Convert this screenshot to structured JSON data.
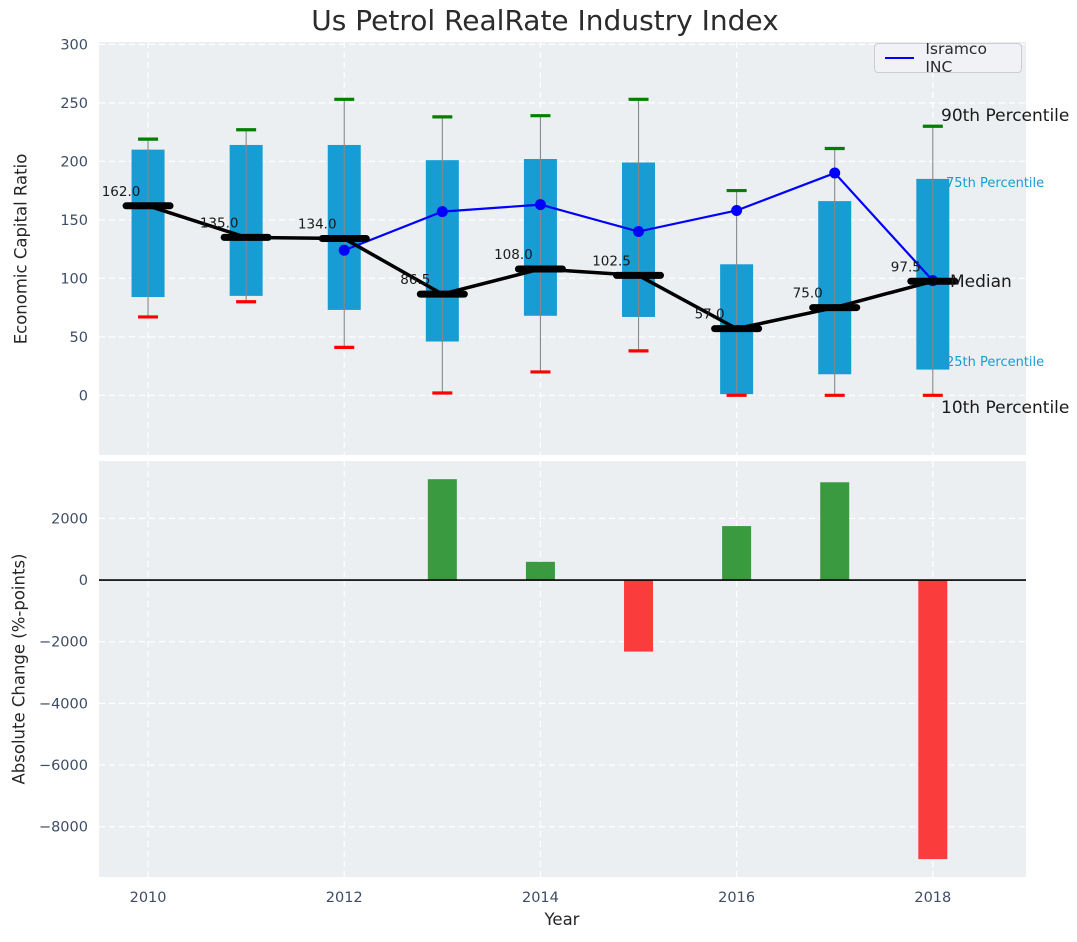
{
  "figure": {
    "title": "Us Petrol RealRate Industry Index"
  },
  "top_chart": {
    "ylabel": "Economic Capital Ratio",
    "legend_label": "Isramco INC",
    "annotations": {
      "p90": "90th Percentile",
      "p75": "75th Percentile",
      "median": "Median",
      "p25": "25th Percentile",
      "p10": "10th Percentile"
    }
  },
  "bottom_chart": {
    "ylabel": "Absolute Change (%-points)",
    "xlabel": "Year"
  },
  "colors": {
    "plot_bg": "#ECEFF1",
    "grid": "#FFFFFF",
    "box": "#179CD4",
    "whisker": "#888888",
    "cap_top_green": "#007F00",
    "cap_bottom_red": "#FF0000",
    "median_line": "#000000",
    "isramco_line": "#0000FF",
    "bar_positive": "#3A9A40",
    "bar_negative": "#FB3C3C",
    "tick_label": "#3E4D63",
    "annotation_dark": "#1A1A1A",
    "annotation_cyan": "#179CD4",
    "zero_line": "#000000"
  },
  "chart_data": [
    {
      "type": "box-percentiles-with-line",
      "title": "Us Petrol RealRate Industry Index",
      "ylabel": "Economic Capital Ratio",
      "categories": [
        2010,
        2011,
        2012,
        2013,
        2014,
        2015,
        2016,
        2017,
        2018
      ],
      "percentiles": {
        "p90": [
          219,
          227,
          253,
          238,
          239,
          253,
          175,
          211,
          230
        ],
        "p75": [
          210,
          214,
          214,
          201,
          202,
          199,
          112,
          166,
          185
        ],
        "median": [
          162,
          135,
          134,
          86.5,
          108,
          102.5,
          57,
          75,
          97.5
        ],
        "p25": [
          84,
          85,
          73,
          46,
          68,
          67,
          1,
          18,
          22
        ],
        "p10": [
          67,
          80,
          41,
          2,
          20,
          38,
          0,
          0,
          0
        ]
      },
      "median_labels": [
        "162.0",
        "135.0",
        "134.0",
        "86.5",
        "108.0",
        "102.5",
        "57.0",
        "75.0",
        "97.5"
      ],
      "series": [
        {
          "name": "Isramco INC",
          "x": [
            2012,
            2013,
            2014,
            2015,
            2016,
            2017,
            2018
          ],
          "values": [
            124,
            157,
            163,
            140,
            158,
            190,
            98
          ]
        }
      ],
      "yticks": [
        0,
        50,
        100,
        150,
        200,
        250,
        300
      ],
      "ylim": [
        -51,
        302
      ],
      "xlim": [
        2009.5,
        2018.95
      ],
      "grid": true,
      "legend_position": "upper right"
    },
    {
      "type": "bar",
      "ylabel": "Absolute Change (%-points)",
      "xlabel": "Year",
      "categories": [
        2010,
        2011,
        2012,
        2013,
        2014,
        2015,
        2016,
        2017,
        2018
      ],
      "values": [
        null,
        null,
        null,
        3270,
        590,
        -2320,
        1750,
        3170,
        -9050
      ],
      "yticks": [
        2000,
        0,
        -2000,
        -4000,
        -6000,
        -8000
      ],
      "xticks": [
        2010,
        2012,
        2014,
        2016,
        2018
      ],
      "ylim": [
        -9630,
        3860
      ],
      "grid": true
    }
  ]
}
